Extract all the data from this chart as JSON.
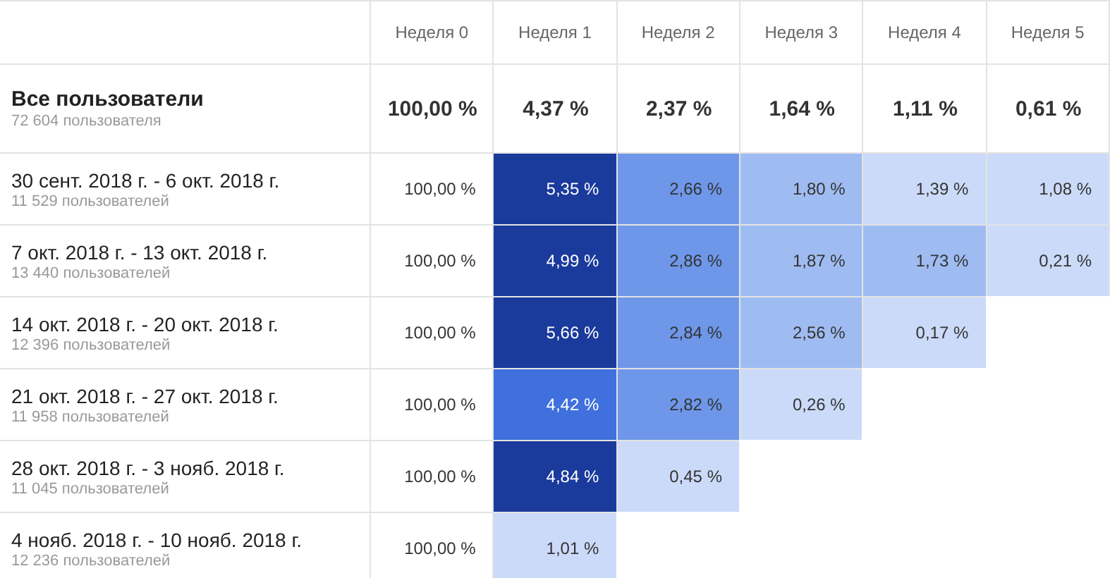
{
  "chart_data": {
    "type": "heatmap",
    "categories": [
      "Неделя 0",
      "Неделя 1",
      "Неделя 2",
      "Неделя 3",
      "Неделя 4",
      "Неделя 5"
    ],
    "y_categories": [
      "Все пользователи\n72 604 пользователя",
      "30 сент. 2018 г. - 6 окт. 2018 г.\n11 529 пользователей",
      "7 окт. 2018 г. - 13 окт. 2018 г.\n13 440 пользователей",
      "14 окт. 2018 г. - 20 окт. 2018 г.\n12 396 пользователей",
      "21 окт. 2018 г. - 27 окт. 2018 г.\n11 958 пользователей",
      "28 окт. 2018 г. - 3 нояб. 2018 г.\n11 045 пользователей",
      "4 нояб. 2018 г. - 10 нояб. 2018 г.\n12 236 пользователей"
    ],
    "cells": [
      [
        100,
        4.37,
        2.37,
        1.64,
        1.11,
        0.61
      ],
      [
        100,
        5.35,
        2.66,
        1.8,
        1.39,
        1.08
      ],
      [
        100,
        4.99,
        2.86,
        1.87,
        1.73,
        0.21
      ],
      [
        100,
        5.66,
        2.84,
        2.56,
        0.17,
        null
      ],
      [
        100,
        4.42,
        2.82,
        0.26,
        null,
        null
      ],
      [
        100,
        4.84,
        0.45,
        null,
        null,
        null
      ],
      [
        100,
        1.01,
        null,
        null,
        null,
        null
      ]
    ],
    "cell_labels": [
      [
        "100,00 %",
        "4,37 %",
        "2,37 %",
        "1,64 %",
        "1,11 %",
        "0,61 %"
      ],
      [
        "100,00 %",
        "5,35 %",
        "2,66 %",
        "1,80 %",
        "1,39 %",
        "1,08 %"
      ],
      [
        "100,00 %",
        "4,99 %",
        "2,86 %",
        "1,87 %",
        "1,73 %",
        "0,21 %"
      ],
      [
        "100,00 %",
        "5,66 %",
        "2,84 %",
        "2,56 %",
        "0,17 %",
        null
      ],
      [
        "100,00 %",
        "4,42 %",
        "2,82 %",
        "0,26 %",
        null,
        null
      ],
      [
        "100,00 %",
        "4,84 %",
        "0,45 %",
        null,
        null,
        null
      ],
      [
        "100,00 %",
        "1,01 %",
        null,
        null,
        null,
        null
      ]
    ]
  }
}
